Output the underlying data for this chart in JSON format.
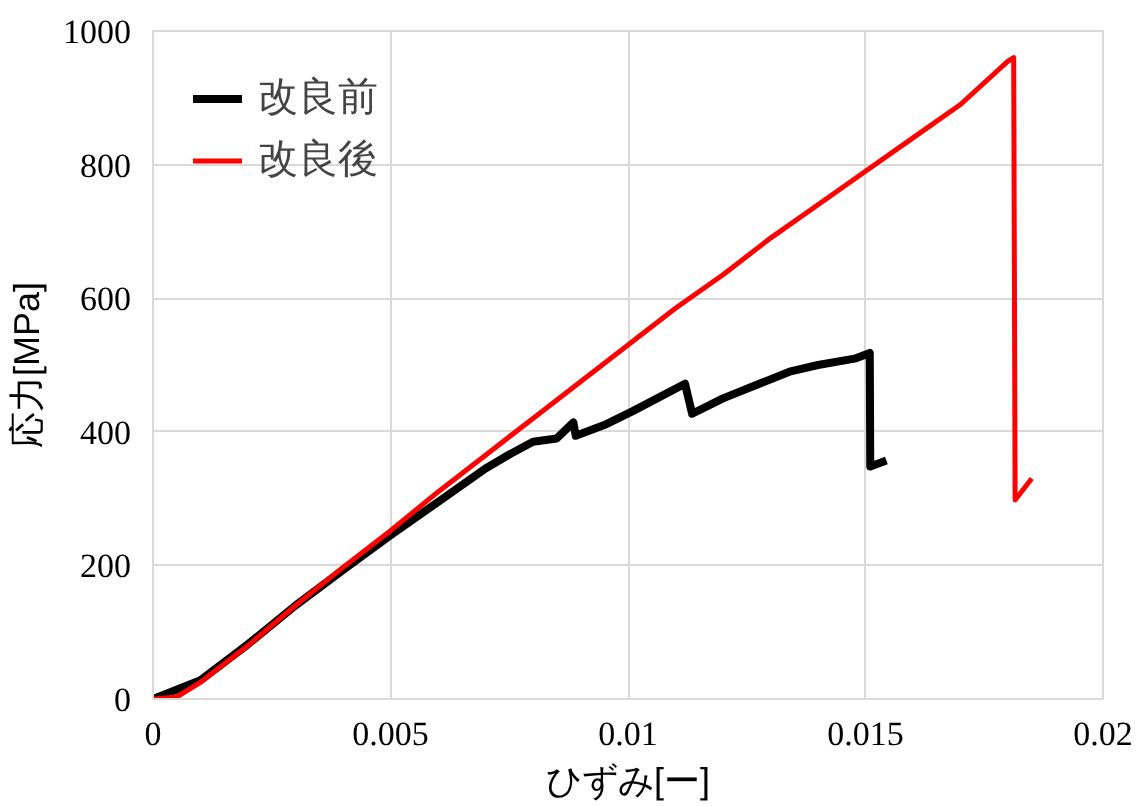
{
  "chart_data": {
    "type": "line",
    "xlabel": "ひずみ[ー]",
    "ylabel": "応力[MPa]",
    "xlim": [
      0,
      0.02
    ],
    "ylim": [
      0,
      1000
    ],
    "xticks": [
      0,
      0.005,
      0.01,
      0.015,
      0.02
    ],
    "yticks": [
      0,
      200,
      400,
      600,
      800,
      1000
    ],
    "grid": true,
    "legend": "top left",
    "marker": "none",
    "line_style": "solid",
    "series": [
      {
        "name": "改良前",
        "color": "#000000",
        "x": [
          0,
          0.001,
          0.002,
          0.003,
          0.004,
          0.005,
          0.006,
          0.007,
          0.0075,
          0.008,
          0.0085,
          0.00885,
          0.0089,
          0.0095,
          0.0101,
          0.0112,
          0.01135,
          0.012,
          0.0134,
          0.014,
          0.0148,
          0.01509,
          0.0151,
          0.01544
        ],
        "values": [
          0,
          28,
          82,
          140,
          193,
          245,
          295,
          345,
          366,
          385,
          390,
          414,
          394,
          410,
          431,
          472,
          427,
          450,
          490,
          500,
          510,
          518,
          348,
          357
        ]
      },
      {
        "name": "改良後",
        "color": "#ff0000",
        "x": [
          0,
          0.0005,
          0.001,
          0.002,
          0.003,
          0.004,
          0.005,
          0.006,
          0.007,
          0.008,
          0.009,
          0.01,
          0.011,
          0.012,
          0.013,
          0.014,
          0.015,
          0.016,
          0.017,
          0.018,
          0.01812,
          0.01815,
          0.0185
        ],
        "values": [
          0,
          3,
          25,
          80,
          140,
          197,
          252,
          310,
          365,
          420,
          475,
          530,
          585,
          635,
          690,
          740,
          790,
          840,
          890,
          955,
          960,
          298,
          330
        ]
      }
    ]
  }
}
